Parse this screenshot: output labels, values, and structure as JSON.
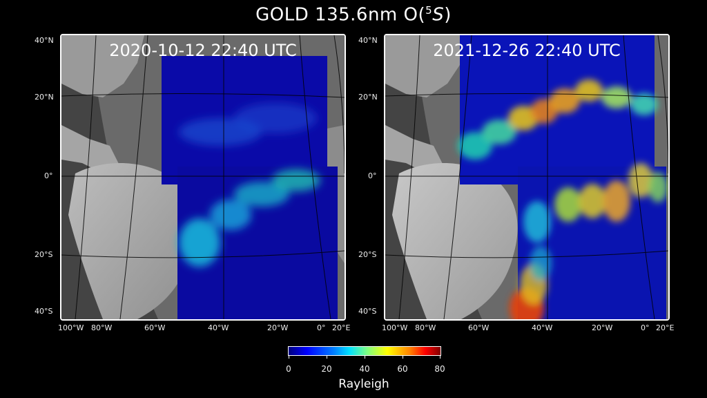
{
  "title": {
    "prefix": "GOLD 135.6nm O(",
    "sup": "5",
    "italic": "S",
    "suffix": ")"
  },
  "panels": [
    {
      "label": "2020-10-12  22:40 UTC"
    },
    {
      "label": "2021-12-26  22:40 UTC"
    }
  ],
  "lat_labels": [
    "40°N",
    "20°N",
    "0°",
    "20°S",
    "40°S"
  ],
  "lon_labels": [
    "100°W",
    "80°W",
    "60°W",
    "40°W",
    "20°W",
    "0°",
    "20°E"
  ],
  "colorbar": {
    "ticks": [
      "0",
      "20",
      "40",
      "60",
      "80"
    ],
    "label": "Rayleigh",
    "range": [
      0,
      80
    ],
    "colormap": "jet"
  },
  "colors": {
    "background": "#000000",
    "frame": "#ffffff"
  }
}
